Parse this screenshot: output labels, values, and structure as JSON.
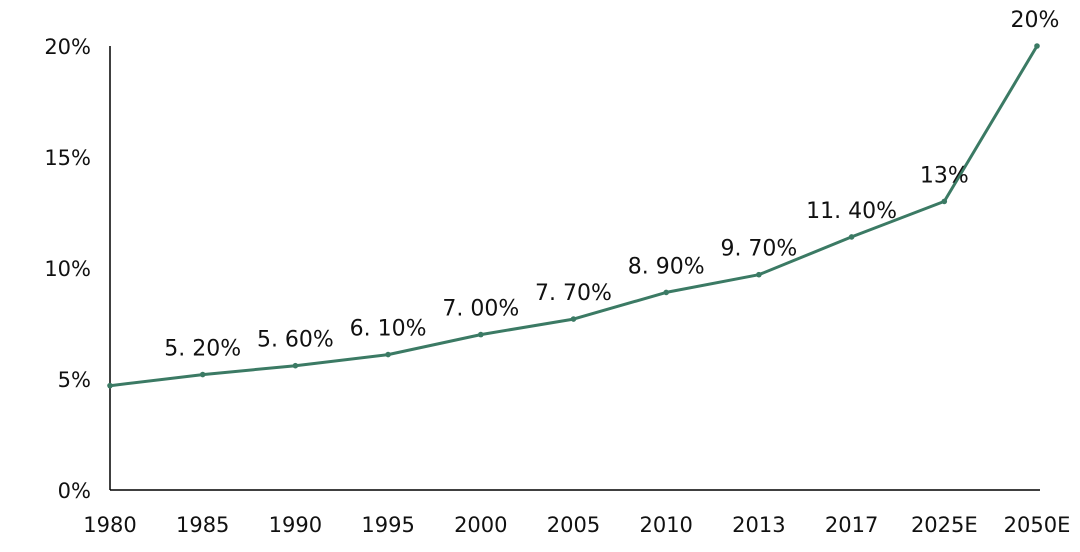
{
  "chart_data": {
    "type": "line",
    "title": "",
    "xlabel": "",
    "ylabel": "",
    "grid": false,
    "legend": "none",
    "categories": [
      "1980",
      "1985",
      "1990",
      "1995",
      "2000",
      "2005",
      "2010",
      "2013",
      "2017",
      "2025E",
      "2050E"
    ],
    "series": [
      {
        "values": [
          4.7,
          5.2,
          5.6,
          6.1,
          7.0,
          7.7,
          8.9,
          9.7,
          11.4,
          13.0,
          20.0
        ],
        "data_labels": [
          "",
          "5. 20%",
          "5. 60%",
          "6. 10%",
          "7. 00%",
          "7. 70%",
          "8. 90%",
          "9. 70%",
          "11. 40%",
          "13%",
          "20%"
        ]
      }
    ],
    "ylim": [
      0,
      20
    ],
    "yticks": [
      0,
      5,
      10,
      15,
      20
    ],
    "ytick_labels": [
      "0%",
      "5%",
      "10%",
      "15%",
      "20%"
    ],
    "line_color": "#3b7a64"
  }
}
